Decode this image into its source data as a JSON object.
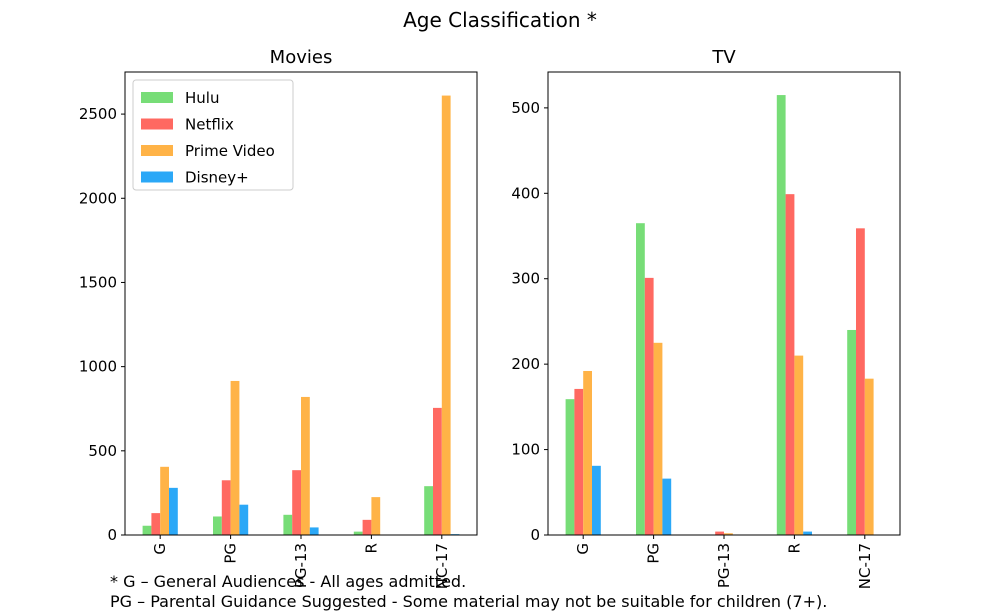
{
  "figure_title": "Age Classification *",
  "footnotes": [
    "* G – General Audiences - All ages admitted.",
    "PG – Parental Guidance Suggested - Some material may not be suitable for children (7+)."
  ],
  "colors": {
    "Hulu": "#77dd77",
    "Netflix": "#ff6961",
    "Prime Video": "#ffb347",
    "Disney+": "#2ba8f7"
  },
  "chart_data": [
    {
      "type": "bar",
      "title": "Movies",
      "categories": [
        "G",
        "PG",
        "PG-13",
        "R",
        "NC-17"
      ],
      "series": [
        {
          "name": "Hulu",
          "values": [
            55,
            110,
            120,
            20,
            290
          ]
        },
        {
          "name": "Netflix",
          "values": [
            130,
            325,
            385,
            90,
            755
          ]
        },
        {
          "name": "Prime Video",
          "values": [
            405,
            915,
            820,
            225,
            2610
          ]
        },
        {
          "name": "Disney+",
          "values": [
            280,
            180,
            45,
            0,
            5
          ]
        }
      ],
      "ylim": [
        0,
        2750
      ],
      "yticks": [
        0,
        500,
        1000,
        1500,
        2000,
        2500
      ],
      "legend": "top-left",
      "grid": false
    },
    {
      "type": "bar",
      "title": "TV",
      "categories": [
        "G",
        "PG",
        "PG-13",
        "R",
        "NC-17"
      ],
      "series": [
        {
          "name": "Hulu",
          "values": [
            159,
            365,
            0,
            515,
            240
          ]
        },
        {
          "name": "Netflix",
          "values": [
            171,
            301,
            4,
            399,
            359
          ]
        },
        {
          "name": "Prime Video",
          "values": [
            192,
            225,
            2,
            210,
            183
          ]
        },
        {
          "name": "Disney+",
          "values": [
            81,
            66,
            0,
            4,
            0
          ]
        }
      ],
      "ylim": [
        0,
        542
      ],
      "yticks": [
        0,
        100,
        200,
        300,
        400,
        500
      ],
      "grid": false
    }
  ]
}
